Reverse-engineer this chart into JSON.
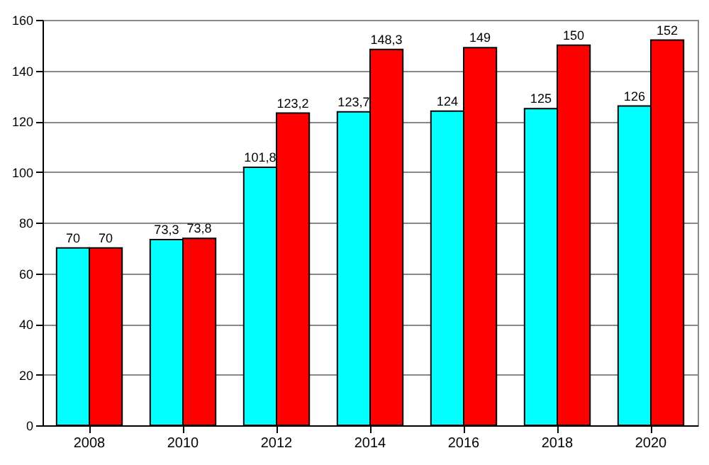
{
  "chart_data": {
    "type": "bar",
    "categories": [
      "2008",
      "2010",
      "2012",
      "2014",
      "2016",
      "2018",
      "2020"
    ],
    "series": [
      {
        "color": "#00ffff",
        "values": [
          70,
          73.3,
          101.8,
          123.7,
          124,
          125,
          126
        ],
        "value_labels": [
          "70",
          "73,3",
          "101,8",
          "123,7",
          "124",
          "125",
          "126"
        ]
      },
      {
        "color": "#ff0000",
        "values": [
          70,
          73.8,
          123.2,
          148.3,
          149,
          150,
          152
        ],
        "value_labels": [
          "70",
          "73,8",
          "123,2",
          "148,3",
          "149",
          "150",
          "152"
        ]
      }
    ],
    "ylim": [
      0,
      160
    ],
    "yticks": [
      0,
      20,
      40,
      60,
      80,
      100,
      120,
      140,
      160
    ],
    "grid": "y"
  }
}
